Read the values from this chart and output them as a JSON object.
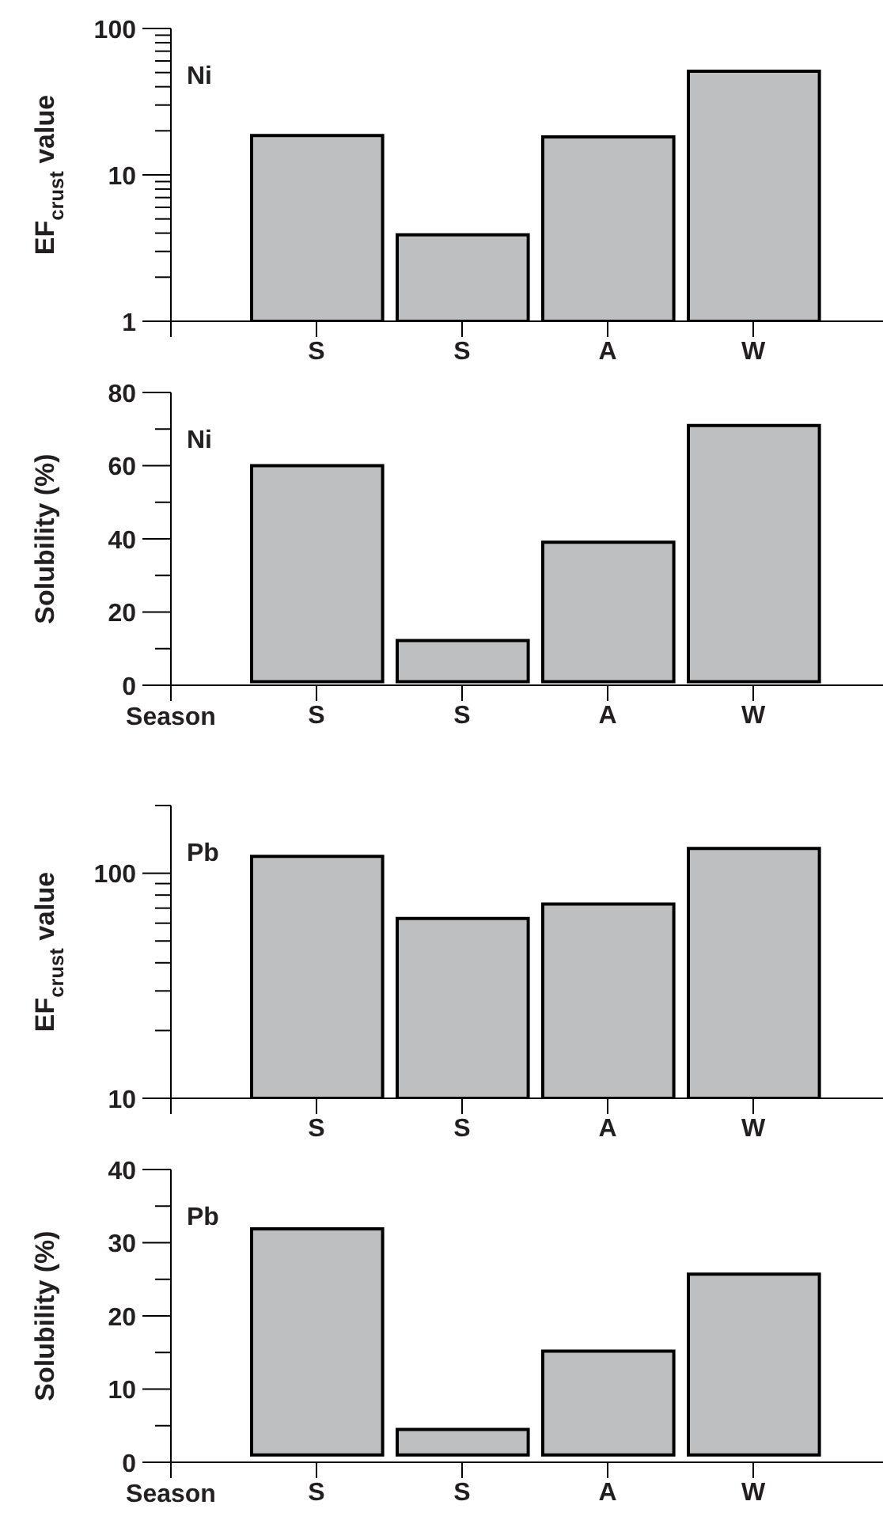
{
  "chart_data": [
    {
      "type": "bar",
      "categories": [
        "S",
        "S",
        "A",
        "W"
      ],
      "values": [
        18.6,
        3.9,
        18.2,
        51
      ],
      "color": "#bebfc1",
      "log": "y",
      "ylim": [
        1,
        100
      ],
      "yticks": [
        1,
        {
          "value": 2,
          "label": null
        },
        {
          "value": 3,
          "label": null
        },
        {
          "value": 4,
          "label": null
        },
        {
          "value": 5,
          "label": null
        },
        {
          "value": 6,
          "label": null
        },
        {
          "value": 7,
          "label": null
        },
        {
          "value": 8,
          "label": null
        },
        {
          "value": 9,
          "label": null
        },
        10,
        {
          "value": 20,
          "label": null
        },
        {
          "value": 30,
          "label": null
        },
        {
          "value": 40,
          "label": null
        },
        {
          "value": 50,
          "label": null
        },
        {
          "value": 60,
          "label": null
        },
        {
          "value": 70,
          "label": null
        },
        {
          "value": 80,
          "label": null
        },
        {
          "value": 90,
          "label": null
        },
        100
      ],
      "ylabel": "EF$_{crust}$ value",
      "annotations": [
        "Ni"
      ]
    },
    {
      "type": "bar",
      "categories": [
        "S",
        "S",
        "A",
        "W"
      ],
      "base": [
        1,
        1,
        1,
        1
      ],
      "values": [
        59,
        11.2,
        38.1,
        70
      ],
      "color": "#bebfc1",
      "ylim": [
        0,
        80
      ],
      "yticks": [
        0,
        {
          "value": 10,
          "label": null
        },
        20,
        {
          "value": 30,
          "label": null
        },
        40,
        {
          "value": 50,
          "label": null
        },
        60,
        {
          "value": 70,
          "label": null
        },
        80
      ],
      "ylabel": "Solubility (%)",
      "xlabel": "Season",
      "annotations": [
        "Ni"
      ]
    },
    {
      "type": "bar",
      "categories": [
        "S",
        "S",
        "A",
        "W"
      ],
      "values": [
        119,
        63,
        73,
        129
      ],
      "color": "#bebfc1",
      "log": "y",
      "ylim": [
        10,
        200
      ],
      "yticks": [
        10,
        {
          "value": 20,
          "label": null
        },
        {
          "value": 30,
          "label": null
        },
        {
          "value": 40,
          "label": null
        },
        {
          "value": 50,
          "label": null
        },
        {
          "value": 60,
          "label": null
        },
        {
          "value": 70,
          "label": null
        },
        {
          "value": 80,
          "label": null
        },
        {
          "value": 90,
          "label": null
        },
        100,
        {
          "value": 200,
          "label": null
        }
      ],
      "ylabel": "EF$_{crust}$ value",
      "annotations": [
        "Pb"
      ]
    },
    {
      "type": "bar",
      "categories": [
        "S",
        "S",
        "A",
        "W"
      ],
      "base": [
        1,
        1,
        1,
        1
      ],
      "values": [
        30.9,
        3.5,
        14.2,
        24.7
      ],
      "color": "#bebfc1",
      "ylim": [
        0,
        40
      ],
      "yticks": [
        0,
        {
          "value": 5,
          "label": null
        },
        10,
        {
          "value": 15,
          "label": null
        },
        20,
        {
          "value": 25,
          "label": null
        },
        30,
        {
          "value": 35,
          "label": null
        },
        40
      ],
      "ylabel": "Solubility (%)",
      "xlabel": "Season",
      "annotations": [
        "Pb"
      ]
    }
  ]
}
